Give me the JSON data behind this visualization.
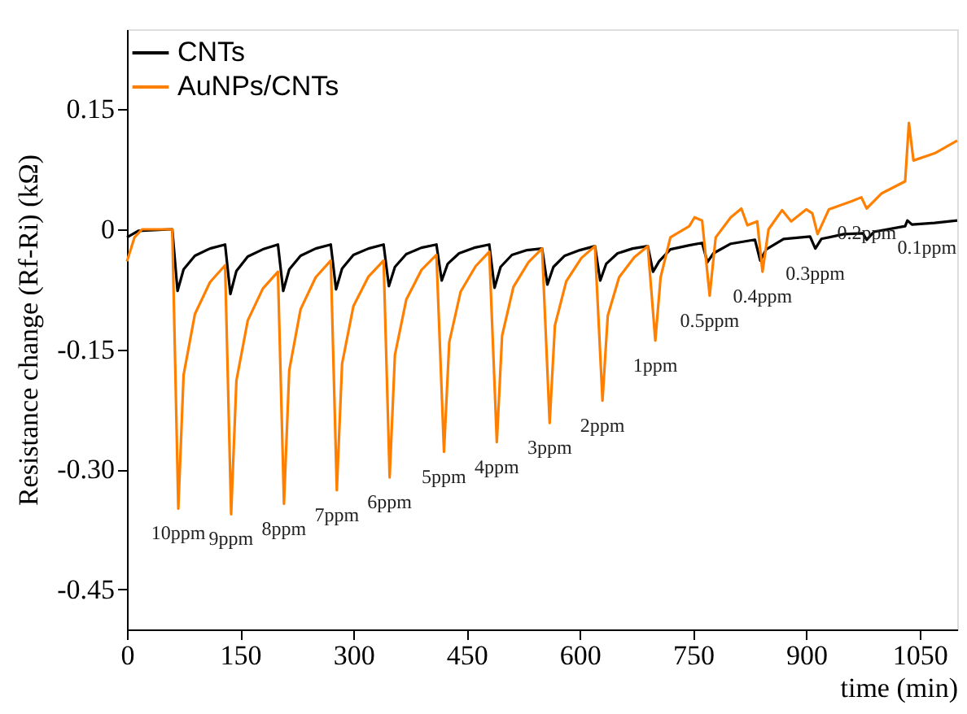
{
  "chart_data": {
    "type": "line",
    "xlabel": "time (min)",
    "ylabel": "Resistance change (Rf-Ri)    (kΩ)",
    "xlim": [
      0,
      1100
    ],
    "ylim": [
      -0.5,
      0.25
    ],
    "xticks": [
      0,
      150,
      300,
      450,
      600,
      750,
      900,
      1050
    ],
    "yticks": [
      0.15,
      0,
      -0.15,
      {
        "value": -0.3,
        "label": "-0.30"
      },
      -0.45
    ],
    "grid": false,
    "legend": "top left",
    "marker": "none",
    "line_style": "solid",
    "series": [
      {
        "name": "CNTs",
        "color": "#000000",
        "x": [
          0,
          15,
          58,
          60,
          67,
          75,
          90,
          110,
          130,
          137,
          145,
          160,
          180,
          200,
          207,
          215,
          230,
          250,
          270,
          277,
          285,
          300,
          320,
          340,
          347,
          355,
          370,
          390,
          410,
          417,
          425,
          440,
          460,
          480,
          487,
          495,
          510,
          530,
          550,
          557,
          565,
          580,
          600,
          620,
          627,
          635,
          650,
          670,
          690,
          697,
          705,
          720,
          745,
          762,
          769,
          777,
          800,
          832,
          839,
          847,
          870,
          905,
          912,
          920,
          950,
          975,
          980,
          990,
          1031,
          1034,
          1040,
          1070,
          1100
        ],
        "values": [
          -0.01,
          -0.002,
          0,
          0,
          -0.077,
          -0.05,
          -0.033,
          -0.024,
          -0.019,
          -0.081,
          -0.052,
          -0.034,
          -0.025,
          -0.019,
          -0.077,
          -0.05,
          -0.033,
          -0.024,
          -0.019,
          -0.075,
          -0.049,
          -0.032,
          -0.024,
          -0.019,
          -0.071,
          -0.047,
          -0.031,
          -0.023,
          -0.019,
          -0.064,
          -0.043,
          -0.03,
          -0.023,
          -0.019,
          -0.073,
          -0.047,
          -0.032,
          -0.026,
          -0.024,
          -0.069,
          -0.047,
          -0.033,
          -0.026,
          -0.021,
          -0.064,
          -0.043,
          -0.03,
          -0.024,
          -0.021,
          -0.053,
          -0.04,
          -0.025,
          -0.02,
          -0.017,
          -0.041,
          -0.03,
          -0.018,
          -0.013,
          -0.039,
          -0.025,
          -0.012,
          -0.009,
          -0.024,
          -0.012,
          -0.006,
          -0.005,
          -0.013,
          -0.003,
          0.004,
          0.011,
          0.006,
          0.008,
          0.011
        ]
      },
      {
        "name": "AuNPs/CNTs",
        "color": "#ff8000",
        "x": [
          0,
          10,
          20,
          60,
          68,
          75,
          90,
          110,
          130,
          138,
          145,
          160,
          180,
          200,
          208,
          215,
          230,
          250,
          270,
          278,
          285,
          300,
          320,
          340,
          348,
          355,
          370,
          390,
          410,
          420,
          427,
          442,
          462,
          480,
          490,
          497,
          512,
          532,
          550,
          560,
          567,
          582,
          602,
          620,
          630,
          637,
          652,
          672,
          690,
          700,
          707,
          720,
          745,
          752,
          762,
          772,
          780,
          800,
          814,
          822,
          835,
          842,
          850,
          868,
          880,
          900,
          908,
          915,
          930,
          960,
          973,
          980,
          1000,
          1031,
          1036,
          1042,
          1070,
          1100
        ],
        "values": [
          -0.04,
          -0.01,
          0,
          0,
          -0.349,
          -0.182,
          -0.106,
          -0.066,
          -0.045,
          -0.356,
          -0.189,
          -0.114,
          -0.074,
          -0.053,
          -0.343,
          -0.176,
          -0.1,
          -0.06,
          -0.039,
          -0.326,
          -0.168,
          -0.096,
          -0.059,
          -0.039,
          -0.31,
          -0.157,
          -0.088,
          -0.051,
          -0.032,
          -0.278,
          -0.141,
          -0.078,
          -0.046,
          -0.028,
          -0.266,
          -0.133,
          -0.072,
          -0.041,
          -0.024,
          -0.242,
          -0.12,
          -0.065,
          -0.036,
          -0.021,
          -0.214,
          -0.108,
          -0.06,
          -0.035,
          -0.021,
          -0.139,
          -0.06,
          -0.01,
          0.004,
          0.015,
          0.011,
          -0.083,
          -0.01,
          0.015,
          0.026,
          0.005,
          0.01,
          -0.053,
          0,
          0.024,
          0.01,
          0.025,
          0.02,
          -0.006,
          0.025,
          0.035,
          0.04,
          0.026,
          0.045,
          0.06,
          0.133,
          0.086,
          0.095,
          0.111
        ]
      }
    ],
    "annotations": [
      {
        "text": "10ppm",
        "x": 68,
        "y": -0.349
      },
      {
        "text": "9ppm",
        "x": 138,
        "y": -0.356
      },
      {
        "text": "8ppm",
        "x": 208,
        "y": -0.343
      },
      {
        "text": "7ppm",
        "x": 278,
        "y": -0.326
      },
      {
        "text": "6ppm",
        "x": 348,
        "y": -0.31
      },
      {
        "text": "5ppm",
        "x": 420,
        "y": -0.278
      },
      {
        "text": "4ppm",
        "x": 490,
        "y": -0.266
      },
      {
        "text": "3ppm",
        "x": 560,
        "y": -0.242
      },
      {
        "text": "2ppm",
        "x": 630,
        "y": -0.214
      },
      {
        "text": "1ppm",
        "x": 700,
        "y": -0.139
      },
      {
        "text": "0.5ppm",
        "x": 772,
        "y": -0.083
      },
      {
        "text": "0.4ppm",
        "x": 842,
        "y": -0.053
      },
      {
        "text": "0.3ppm",
        "x": 912,
        "y": -0.024
      },
      {
        "text": "0.2ppm",
        "x": 980,
        "y": 0.026
      },
      {
        "text": "0.1ppm",
        "x": 1060,
        "y": 0.008
      }
    ]
  }
}
